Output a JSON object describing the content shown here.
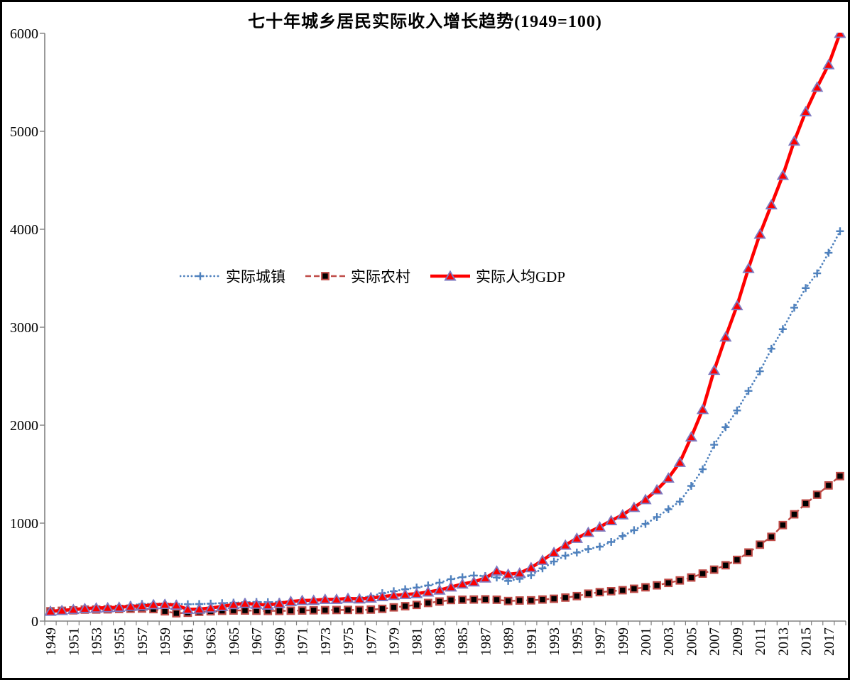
{
  "title": "七十年城乡居民实际收入增长趋势(1949=100)",
  "legend": {
    "items": [
      {
        "id": "urban",
        "label": "实际城镇"
      },
      {
        "id": "rural",
        "label": "实际农村"
      },
      {
        "id": "gdp",
        "label": "实际人均GDP"
      }
    ]
  },
  "colors": {
    "axis": "#808080",
    "text": "#000000",
    "urban_line": "#4f81bd",
    "rural_line": "#bf4b47",
    "rural_marker_fill": "#000000",
    "gdp_line": "#fe0000",
    "gdp_marker_fill": "#fe0000",
    "gdp_marker_stroke": "#7d78c0"
  },
  "chart_data": {
    "type": "line",
    "title": "七十年城乡居民实际收入增长趋势(1949=100)",
    "xlabel": "",
    "ylabel": "",
    "ylim": [
      0,
      6000
    ],
    "y_ticks": [
      0,
      1000,
      2000,
      3000,
      4000,
      5000,
      6000
    ],
    "grid": false,
    "legend_position": "inside-left-middle",
    "x": [
      1949,
      1950,
      1951,
      1952,
      1953,
      1954,
      1955,
      1956,
      1957,
      1958,
      1959,
      1960,
      1961,
      1962,
      1963,
      1964,
      1965,
      1966,
      1967,
      1968,
      1969,
      1970,
      1971,
      1972,
      1973,
      1974,
      1975,
      1976,
      1977,
      1978,
      1979,
      1980,
      1981,
      1982,
      1983,
      1984,
      1985,
      1986,
      1987,
      1988,
      1989,
      1990,
      1991,
      1992,
      1993,
      1994,
      1995,
      1996,
      1997,
      1998,
      1999,
      2000,
      2001,
      2002,
      2003,
      2004,
      2005,
      2006,
      2007,
      2008,
      2009,
      2010,
      2011,
      2012,
      2013,
      2014,
      2015,
      2016,
      2017,
      2018
    ],
    "x_tick_labels": [
      "1949",
      "1951",
      "1953",
      "1955",
      "1957",
      "1959",
      "1961",
      "1963",
      "1965",
      "1967",
      "1969",
      "1971",
      "1973",
      "1975",
      "1977",
      "1979",
      "1981",
      "1983",
      "1985",
      "1987",
      "1989",
      "1991",
      "1993",
      "1995",
      "1997",
      "1999",
      "2001",
      "2003",
      "2005",
      "2007",
      "2009",
      "2011",
      "2013",
      "2015",
      "2017"
    ],
    "series": [
      {
        "id": "urban",
        "name": "实际城镇",
        "line_style": "dotted",
        "marker": "plus",
        "values": [
          100,
          108,
          115,
          125,
          135,
          140,
          148,
          162,
          175,
          178,
          180,
          176,
          172,
          174,
          178,
          183,
          188,
          192,
          195,
          193,
          196,
          200,
          205,
          212,
          218,
          222,
          230,
          238,
          252,
          285,
          305,
          325,
          342,
          364,
          392,
          428,
          448,
          465,
          460,
          445,
          410,
          432,
          468,
          538,
          608,
          668,
          700,
          735,
          760,
          808,
          868,
          928,
          992,
          1062,
          1142,
          1220,
          1380,
          1550,
          1800,
          1980,
          2150,
          2350,
          2550,
          2780,
          2980,
          3200,
          3400,
          3550,
          3760,
          3980
        ]
      },
      {
        "id": "rural",
        "name": "实际农村",
        "line_style": "dashed",
        "marker": "filled-square",
        "values": [
          100,
          105,
          110,
          117,
          118,
          120,
          124,
          126,
          128,
          122,
          100,
          80,
          85,
          95,
          100,
          105,
          108,
          108,
          106,
          104,
          104,
          106,
          108,
          110,
          112,
          113,
          114,
          113,
          117,
          125,
          140,
          152,
          165,
          185,
          200,
          215,
          218,
          220,
          222,
          218,
          205,
          210,
          212,
          220,
          228,
          240,
          255,
          280,
          295,
          305,
          315,
          330,
          345,
          365,
          390,
          415,
          445,
          485,
          525,
          570,
          625,
          700,
          780,
          860,
          980,
          1090,
          1200,
          1290,
          1385,
          1480
        ]
      },
      {
        "id": "gdp",
        "name": "实际人均GDP",
        "line_style": "solid",
        "marker": "filled-triangle",
        "values": [
          100,
          108,
          118,
          128,
          133,
          136,
          141,
          150,
          154,
          167,
          170,
          162,
          120,
          122,
          133,
          150,
          168,
          180,
          172,
          163,
          180,
          200,
          210,
          212,
          222,
          222,
          232,
          226,
          235,
          250,
          262,
          272,
          280,
          297,
          317,
          348,
          378,
          400,
          440,
          510,
          478,
          490,
          545,
          620,
          700,
          775,
          845,
          905,
          960,
          1025,
          1085,
          1160,
          1240,
          1340,
          1460,
          1620,
          1880,
          2160,
          2560,
          2900,
          3220,
          3600,
          3950,
          4250,
          4550,
          4900,
          5200,
          5450,
          5680,
          6000
        ]
      }
    ]
  }
}
